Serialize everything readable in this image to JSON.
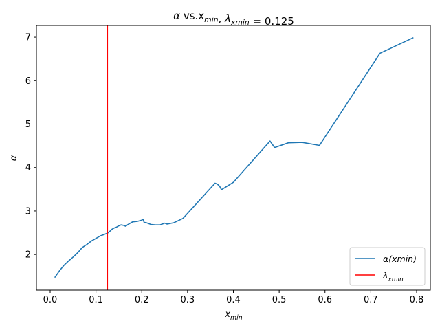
{
  "chart_data": {
    "type": "line",
    "title": "α vs.x_min, λ_xmin = 0.125",
    "xlabel": "x_min",
    "ylabel": "α",
    "xlim": [
      -0.03,
      0.83
    ],
    "ylim": [
      1.18,
      7.27
    ],
    "xticks": [
      0.0,
      0.1,
      0.2,
      0.3,
      0.4,
      0.5,
      0.6,
      0.7,
      0.8
    ],
    "xtick_labels": [
      "0.0",
      "0.1",
      "0.2",
      "0.3",
      "0.4",
      "0.5",
      "0.6",
      "0.7",
      "0.8"
    ],
    "yticks": [
      2,
      3,
      4,
      5,
      6,
      7
    ],
    "ytick_labels": [
      "2",
      "3",
      "4",
      "5",
      "6",
      "7"
    ],
    "grid": false,
    "legend_position": "lower-right",
    "series": [
      {
        "name": "α(xmin)",
        "color": "#1f77b4",
        "x": [
          0.01,
          0.02,
          0.03,
          0.04,
          0.05,
          0.06,
          0.07,
          0.08,
          0.09,
          0.1,
          0.11,
          0.12,
          0.125,
          0.13,
          0.135,
          0.14,
          0.145,
          0.15,
          0.155,
          0.16,
          0.165,
          0.17,
          0.18,
          0.19,
          0.2,
          0.203,
          0.205,
          0.21,
          0.22,
          0.23,
          0.24,
          0.25,
          0.255,
          0.26,
          0.27,
          0.29,
          0.36,
          0.365,
          0.37,
          0.374,
          0.4,
          0.48,
          0.49,
          0.52,
          0.55,
          0.588,
          0.72,
          0.793
        ],
        "y": [
          1.47,
          1.62,
          1.75,
          1.85,
          1.94,
          2.04,
          2.16,
          2.23,
          2.31,
          2.37,
          2.43,
          2.47,
          2.49,
          2.53,
          2.58,
          2.61,
          2.63,
          2.66,
          2.68,
          2.67,
          2.65,
          2.69,
          2.75,
          2.76,
          2.79,
          2.81,
          2.74,
          2.73,
          2.69,
          2.68,
          2.68,
          2.72,
          2.7,
          2.71,
          2.73,
          2.83,
          3.64,
          3.62,
          3.57,
          3.49,
          3.66,
          4.61,
          4.46,
          4.57,
          4.58,
          4.51,
          6.63,
          6.99
        ]
      },
      {
        "name": "λ_xmin",
        "color": "#ff0000",
        "type": "vline",
        "x": 0.125
      }
    ]
  }
}
